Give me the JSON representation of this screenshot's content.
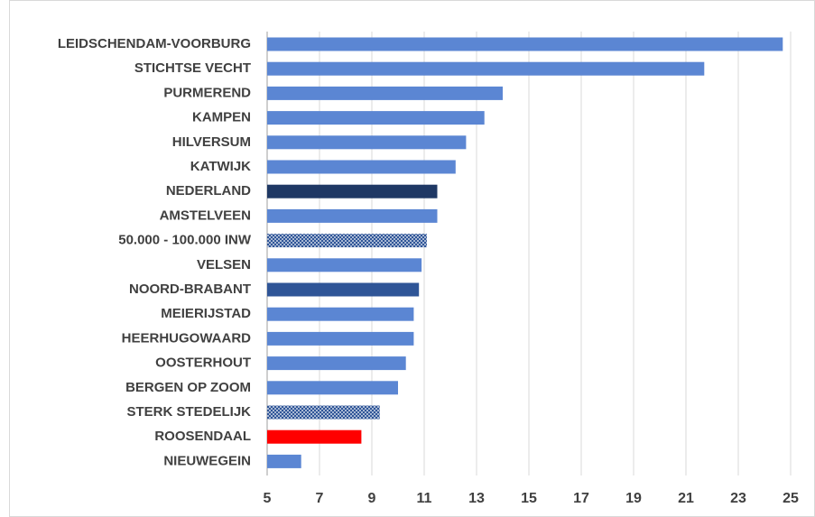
{
  "chart_data": {
    "type": "bar",
    "orientation": "horizontal",
    "categories": [
      "LEIDSCHENDAM-VOORBURG",
      "STICHTSE VECHT",
      "PURMEREND",
      "KAMPEN",
      "HILVERSUM",
      "KATWIJK",
      "NEDERLAND",
      "AMSTELVEEN",
      "50.000 - 100.000 INW",
      "VELSEN",
      "NOORD-BRABANT",
      "MEIERIJSTAD",
      "HEERHUGOWAARD",
      "OOSTERHOUT",
      "BERGEN OP ZOOM",
      "STERK STEDELIJK",
      "ROOSENDAAL",
      "NIEUWEGEIN"
    ],
    "values": [
      24.7,
      21.7,
      14.0,
      13.3,
      12.6,
      12.2,
      11.5,
      11.5,
      11.1,
      10.9,
      10.8,
      10.6,
      10.6,
      10.3,
      10.0,
      9.3,
      8.6,
      6.3
    ],
    "colors": [
      "#5b86d3",
      "#5b86d3",
      "#5b86d3",
      "#5b86d3",
      "#5b86d3",
      "#5b86d3",
      "#1f3864",
      "#5b86d3",
      "#2f5597",
      "#5b86d3",
      "#2f5597",
      "#5b86d3",
      "#5b86d3",
      "#5b86d3",
      "#5b86d3",
      "#2f5597",
      "#ff0000",
      "#5b86d3"
    ],
    "bar_styles": [
      "solid",
      "solid",
      "solid",
      "solid",
      "solid",
      "solid",
      "solid",
      "solid",
      "dotted",
      "solid",
      "solid",
      "solid",
      "solid",
      "solid",
      "solid",
      "dotted",
      "solid",
      "solid"
    ],
    "xlim": [
      5,
      25
    ],
    "xticks": [
      5,
      7,
      9,
      11,
      13,
      15,
      17,
      19,
      21,
      23,
      25
    ],
    "grid": true
  }
}
